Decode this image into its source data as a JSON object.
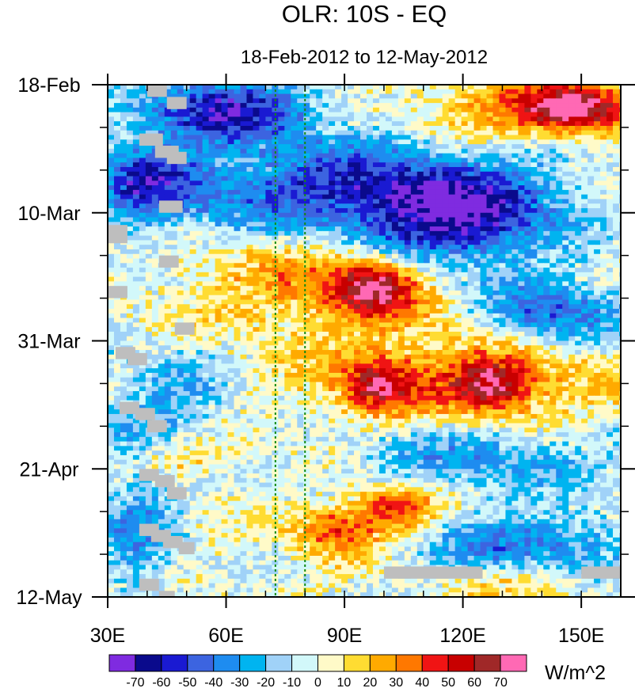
{
  "chart_data": {
    "type": "heatmap",
    "title": "OLR: 10S - EQ",
    "subtitle": "18-Feb-2012 to 12-May-2012",
    "x_axis": {
      "range": [
        30,
        160
      ],
      "ticks": [
        {
          "value": 30,
          "label": "30E"
        },
        {
          "value": 60,
          "label": "60E"
        },
        {
          "value": 90,
          "label": "90E"
        },
        {
          "value": 120,
          "label": "120E"
        },
        {
          "value": 150,
          "label": "150E"
        }
      ],
      "minor_step": 10
    },
    "y_axis": {
      "range_days": [
        0,
        84
      ],
      "ticks": [
        {
          "day": 0,
          "label": "18-Feb"
        },
        {
          "day": 21,
          "label": "10-Mar"
        },
        {
          "day": 42,
          "label": "31-Mar"
        },
        {
          "day": 63,
          "label": "21-Apr"
        },
        {
          "day": 84,
          "label": "12-May"
        }
      ],
      "minor_step_days": 7
    },
    "reference_lines_lon": [
      72.5,
      80
    ],
    "colorbar": {
      "unit": "W/m^2",
      "levels": [
        -70,
        -60,
        -50,
        -40,
        -30,
        -20,
        -10,
        0,
        10,
        20,
        30,
        40,
        50,
        60,
        70
      ],
      "level_labels": [
        "-70",
        "-60",
        "-50",
        "-40",
        "-30",
        "-20",
        "-10",
        "0",
        "10",
        "20",
        "30",
        "40",
        "50",
        "60",
        "70"
      ],
      "colors": [
        "#7f2be0",
        "#0a0a8c",
        "#1a1ad2",
        "#3c64e0",
        "#1e8cf0",
        "#00b4f0",
        "#a0d2f8",
        "#d2f8fa",
        "#fffac8",
        "#ffdc32",
        "#ffaa00",
        "#ff7800",
        "#f01414",
        "#c80000",
        "#a02828",
        "#ff69b4"
      ]
    },
    "features": [
      {
        "lon": [
          40,
          80
        ],
        "day": [
          0,
          8
        ],
        "value": -60
      },
      {
        "lon": [
          115,
          160
        ],
        "day": [
          0,
          8
        ],
        "value": 40
      },
      {
        "lon": [
          140,
          158
        ],
        "day": [
          2,
          6
        ],
        "value": 55
      },
      {
        "lon": [
          40,
          140
        ],
        "day": [
          10,
          24
        ],
        "value": -50
      },
      {
        "lon": [
          95,
          140
        ],
        "day": [
          16,
          30
        ],
        "value": -55
      },
      {
        "lon": [
          30,
          50
        ],
        "day": [
          10,
          22
        ],
        "value": -40
      },
      {
        "lon": [
          55,
          120
        ],
        "day": [
          25,
          40
        ],
        "value": 30
      },
      {
        "lon": [
          90,
          105
        ],
        "day": [
          30,
          36
        ],
        "value": 55
      },
      {
        "lon": [
          125,
          160
        ],
        "day": [
          33,
          42
        ],
        "value": -45
      },
      {
        "lon": [
          85,
          160
        ],
        "day": [
          42,
          56
        ],
        "value": 30
      },
      {
        "lon": [
          92,
          105
        ],
        "day": [
          46,
          52
        ],
        "value": 48
      },
      {
        "lon": [
          120,
          135
        ],
        "day": [
          46,
          52
        ],
        "value": 45
      },
      {
        "lon": [
          30,
          60
        ],
        "day": [
          44,
          60
        ],
        "value": -25
      },
      {
        "lon": [
          90,
          160
        ],
        "day": [
          56,
          66
        ],
        "value": -30
      },
      {
        "lon": [
          40,
          60
        ],
        "day": [
          59,
          63
        ],
        "value": 25
      },
      {
        "lon": [
          95,
          110
        ],
        "day": [
          67,
          72
        ],
        "value": 50
      },
      {
        "lon": [
          80,
          95
        ],
        "day": [
          70,
          76
        ],
        "value": 40
      },
      {
        "lon": [
          115,
          160
        ],
        "day": [
          72,
          80
        ],
        "value": -45
      },
      {
        "lon": [
          30,
          45
        ],
        "day": [
          62,
          84
        ],
        "value": -30
      },
      {
        "lon": [
          125,
          150
        ],
        "day": [
          78,
          84
        ],
        "value": 25
      }
    ],
    "missing_data_boxes": [
      {
        "lon": [
          40,
          45
        ],
        "day": [
          0,
          2
        ]
      },
      {
        "lon": [
          45,
          50
        ],
        "day": [
          2,
          4
        ]
      },
      {
        "lon": [
          38,
          44
        ],
        "day": [
          8,
          10
        ]
      },
      {
        "lon": [
          42,
          48
        ],
        "day": [
          10,
          12
        ]
      },
      {
        "lon": [
          45,
          50
        ],
        "day": [
          11,
          13
        ]
      },
      {
        "lon": [
          43,
          49
        ],
        "day": [
          19,
          21
        ]
      },
      {
        "lon": [
          30,
          35
        ],
        "day": [
          23,
          26
        ]
      },
      {
        "lon": [
          43,
          48
        ],
        "day": [
          28,
          30
        ]
      },
      {
        "lon": [
          30,
          35
        ],
        "day": [
          33,
          35
        ]
      },
      {
        "lon": [
          47,
          52
        ],
        "day": [
          39,
          41
        ]
      },
      {
        "lon": [
          32,
          37
        ],
        "day": [
          43,
          45
        ]
      },
      {
        "lon": [
          35,
          40
        ],
        "day": [
          44,
          46
        ]
      },
      {
        "lon": [
          33,
          38
        ],
        "day": [
          52,
          54
        ]
      },
      {
        "lon": [
          37,
          42
        ],
        "day": [
          53,
          55
        ]
      },
      {
        "lon": [
          40,
          45
        ],
        "day": [
          55,
          57
        ]
      },
      {
        "lon": [
          38,
          43
        ],
        "day": [
          63,
          65
        ]
      },
      {
        "lon": [
          42,
          47
        ],
        "day": [
          64,
          66
        ]
      },
      {
        "lon": [
          45,
          50
        ],
        "day": [
          66,
          68
        ]
      },
      {
        "lon": [
          38,
          43
        ],
        "day": [
          72,
          74
        ]
      },
      {
        "lon": [
          41,
          46
        ],
        "day": [
          73,
          75
        ]
      },
      {
        "lon": [
          44,
          49
        ],
        "day": [
          74,
          76
        ]
      },
      {
        "lon": [
          48,
          52
        ],
        "day": [
          75,
          77
        ]
      },
      {
        "lon": [
          38,
          43
        ],
        "day": [
          81,
          83
        ]
      },
      {
        "lon": [
          43,
          47
        ],
        "day": [
          83,
          84
        ]
      },
      {
        "lon": [
          100,
          125
        ],
        "day": [
          79,
          81
        ]
      },
      {
        "lon": [
          150,
          160
        ],
        "day": [
          79,
          81
        ]
      }
    ]
  }
}
